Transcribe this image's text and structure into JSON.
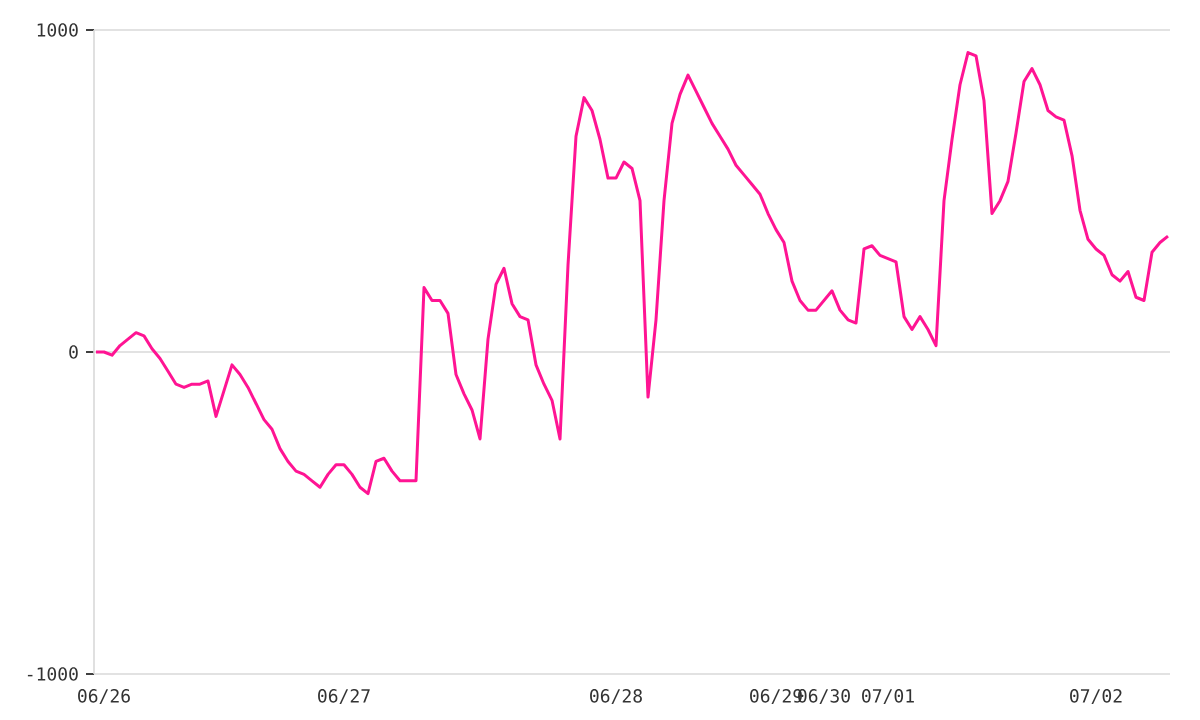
{
  "chart_data": {
    "type": "line",
    "color": "#ff1493",
    "categories": [
      null,
      "06/26",
      null,
      null,
      null,
      null,
      null,
      null,
      null,
      null,
      null,
      null,
      null,
      null,
      null,
      null,
      null,
      null,
      null,
      null,
      null,
      null,
      null,
      null,
      null,
      null,
      null,
      null,
      null,
      null,
      null,
      "06/27",
      null,
      null,
      null,
      null,
      null,
      null,
      null,
      null,
      null,
      null,
      null,
      null,
      null,
      null,
      null,
      null,
      null,
      null,
      null,
      null,
      null,
      null,
      null,
      null,
      null,
      null,
      null,
      null,
      null,
      null,
      null,
      null,
      null,
      "06/28",
      null,
      null,
      null,
      null,
      null,
      null,
      null,
      null,
      null,
      null,
      null,
      null,
      null,
      null,
      null,
      null,
      null,
      null,
      null,
      "06/29",
      null,
      null,
      null,
      null,
      null,
      "06/30",
      null,
      null,
      null,
      null,
      null,
      null,
      null,
      "07/01",
      null,
      null,
      null,
      null,
      null,
      null,
      null,
      null,
      null,
      null,
      null,
      null,
      null,
      null,
      null,
      null,
      null,
      null,
      null,
      null,
      null,
      null,
      null,
      null,
      null,
      "07/02",
      null,
      null,
      null,
      null,
      null,
      null,
      null,
      null,
      null
    ],
    "values": [
      0,
      0,
      -10,
      20,
      40,
      60,
      50,
      10,
      -20,
      -60,
      -100,
      -110,
      -100,
      -100,
      -90,
      -200,
      -120,
      -40,
      -70,
      -110,
      -160,
      -210,
      -240,
      -300,
      -340,
      -370,
      -380,
      -400,
      -420,
      -380,
      -350,
      -350,
      -380,
      -420,
      -440,
      -340,
      -330,
      -370,
      -400,
      -400,
      -400,
      200,
      160,
      160,
      120,
      -70,
      -130,
      -180,
      -270,
      40,
      210,
      260,
      150,
      110,
      100,
      -40,
      -100,
      -150,
      -270,
      270,
      670,
      790,
      750,
      660,
      540,
      540,
      590,
      570,
      470,
      -140,
      100,
      470,
      710,
      800,
      860,
      810,
      760,
      710,
      670,
      630,
      580,
      550,
      520,
      490,
      430,
      380,
      340,
      220,
      160,
      130,
      130,
      160,
      190,
      130,
      100,
      90,
      320,
      330,
      300,
      290,
      280,
      110,
      70,
      110,
      70,
      20,
      470,
      660,
      830,
      930,
      920,
      780,
      430,
      470,
      530,
      680,
      840,
      880,
      830,
      750,
      730,
      720,
      610,
      440,
      350,
      320,
      300,
      240,
      220,
      250,
      170,
      160,
      310,
      340,
      360
    ],
    "ylim": [
      -1000,
      1000
    ],
    "yticks": [
      -1000,
      0,
      1000
    ],
    "grid": "y",
    "marker": "none",
    "line_style": "solid"
  }
}
